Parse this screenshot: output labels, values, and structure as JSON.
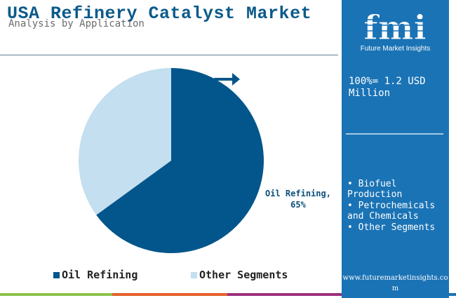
{
  "header": {
    "title": "USA Refinery Catalyst Market",
    "subtitle": "Analysis by Application"
  },
  "chart_data": {
    "type": "pie",
    "categories": [
      "Oil Refining",
      "Other Segments"
    ],
    "values": [
      65,
      35
    ],
    "colors": [
      "#03568b",
      "#c3dff0"
    ],
    "data_label": {
      "name": "Oil Refining,",
      "value": "65%"
    },
    "legend": {
      "placement": "bottom",
      "items": [
        "Oil Refining",
        "Other Segments"
      ]
    }
  },
  "sidebar": {
    "logo_letters": "fmi",
    "logo_text": "Future Market Insights",
    "total": "100%= 1.2 USD Million",
    "segments": [
      "Biofuel Production",
      "Petrochemicals and Chemicals",
      "Other Segments"
    ],
    "website": "www.futuremarketinsights.com"
  },
  "colors": {
    "sidebar": "#1a73b5",
    "title": "#0b5a8a",
    "bottom_bar": [
      "#8bc34a",
      "#e5612a",
      "#9c2f7c",
      "#1a73b5"
    ]
  }
}
